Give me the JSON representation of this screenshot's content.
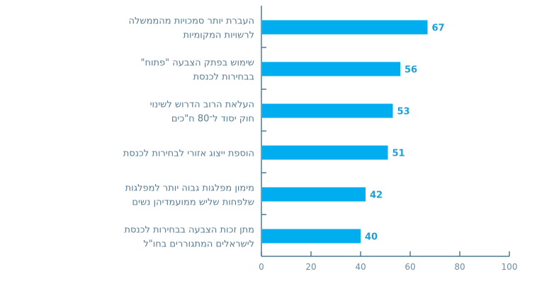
{
  "chart_data": {
    "type": "bar",
    "orientation": "horizontal",
    "categories": [
      [
        "העברת יותר סמכויות מהממשלה",
        "לרשויות המקומיות"
      ],
      [
        "שימוש בפתק הצבעה \"פתוח\"",
        "בבחירות לכנסת"
      ],
      [
        "העלאת הרוב הדרוש לשינוי",
        "חוק יסוד ל־80 ח\"כים"
      ],
      [
        "הוספת ייצוג אזורי לבחירות לכנסת"
      ],
      [
        "מימון מפלגות גבוה יותר למפלגות",
        "שלפחות שליש ממועמדיהן נשים"
      ],
      [
        "מתן זכות הצבעה בבחירות לכנסת",
        "לישראלים המתגוררים בחו\"ל"
      ]
    ],
    "values": [
      67,
      56,
      53,
      51,
      42,
      40
    ],
    "xlim": [
      0,
      100
    ],
    "xticks": [
      "0",
      "20",
      "40",
      "60",
      "80",
      "100"
    ],
    "grid": false,
    "colors": {
      "bar": "#00AEEF",
      "axis": "#4f7a96",
      "label": "#5a7d95",
      "value": "#1d9fd8"
    }
  }
}
